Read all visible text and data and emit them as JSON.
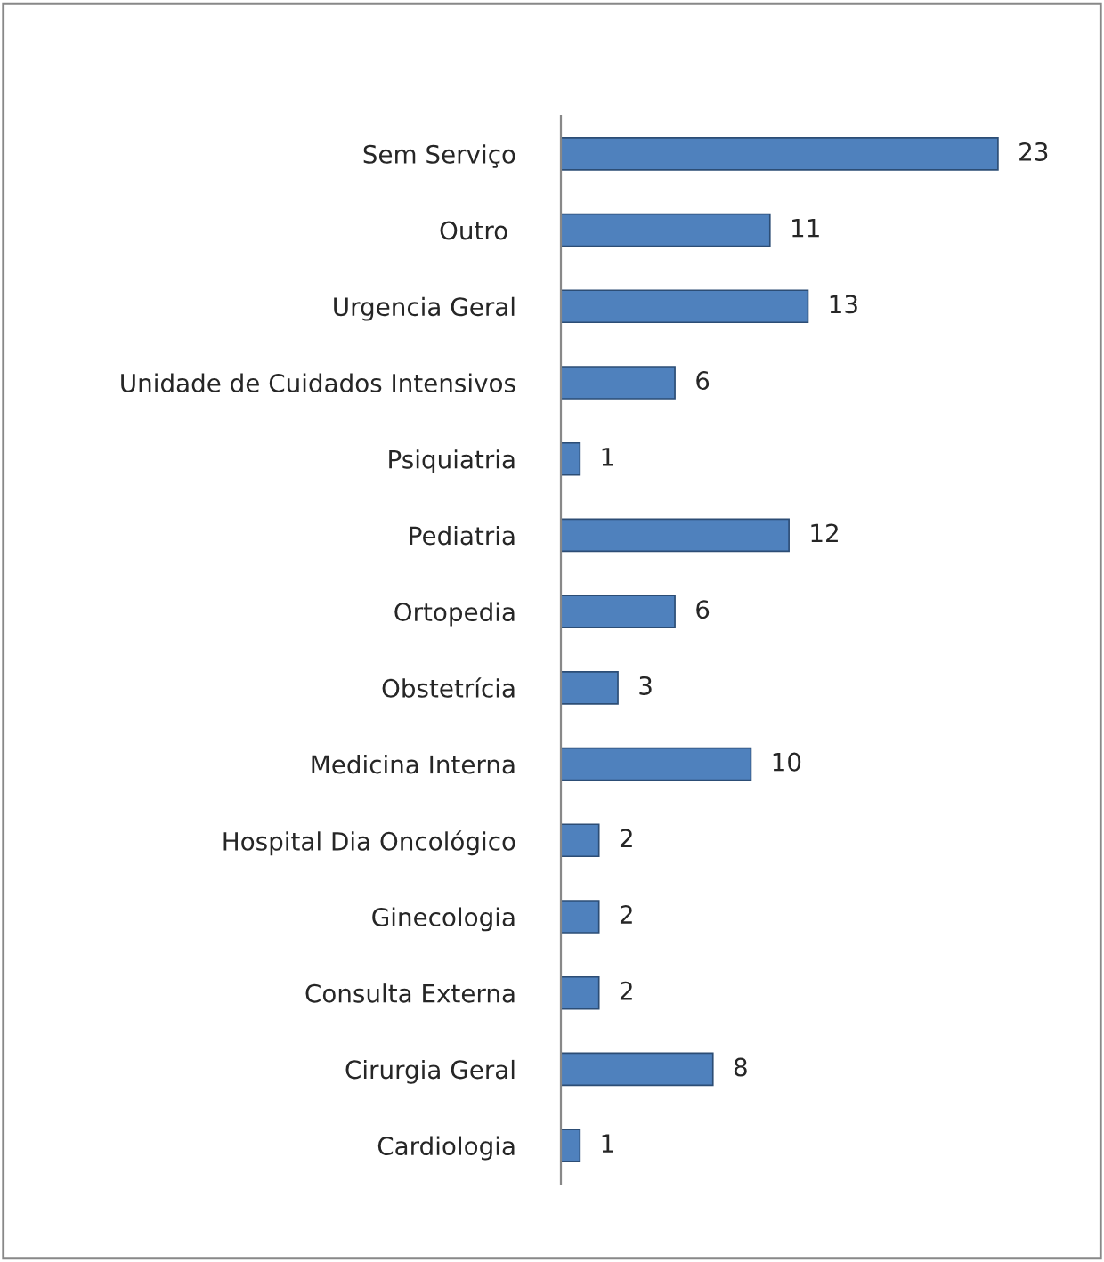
{
  "chart_data": {
    "type": "bar",
    "orientation": "horizontal",
    "data_labels": true,
    "grid": false,
    "legend": false,
    "color": "#4f81bd",
    "categories": [
      "Sem Serviço",
      "Outro ",
      "Urgencia Geral",
      "Unidade de Cuidados Intensivos",
      "Psiquiatria",
      "Pediatria",
      "Ortopedia",
      "Obstetrícia",
      "Medicina Interna",
      "Hospital Dia Oncológico",
      "Ginecologia",
      "Consulta Externa",
      "Cirurgia Geral",
      "Cardiologia"
    ],
    "values": [
      23,
      11,
      13,
      6,
      1,
      12,
      6,
      3,
      10,
      2,
      2,
      2,
      8,
      1
    ]
  }
}
